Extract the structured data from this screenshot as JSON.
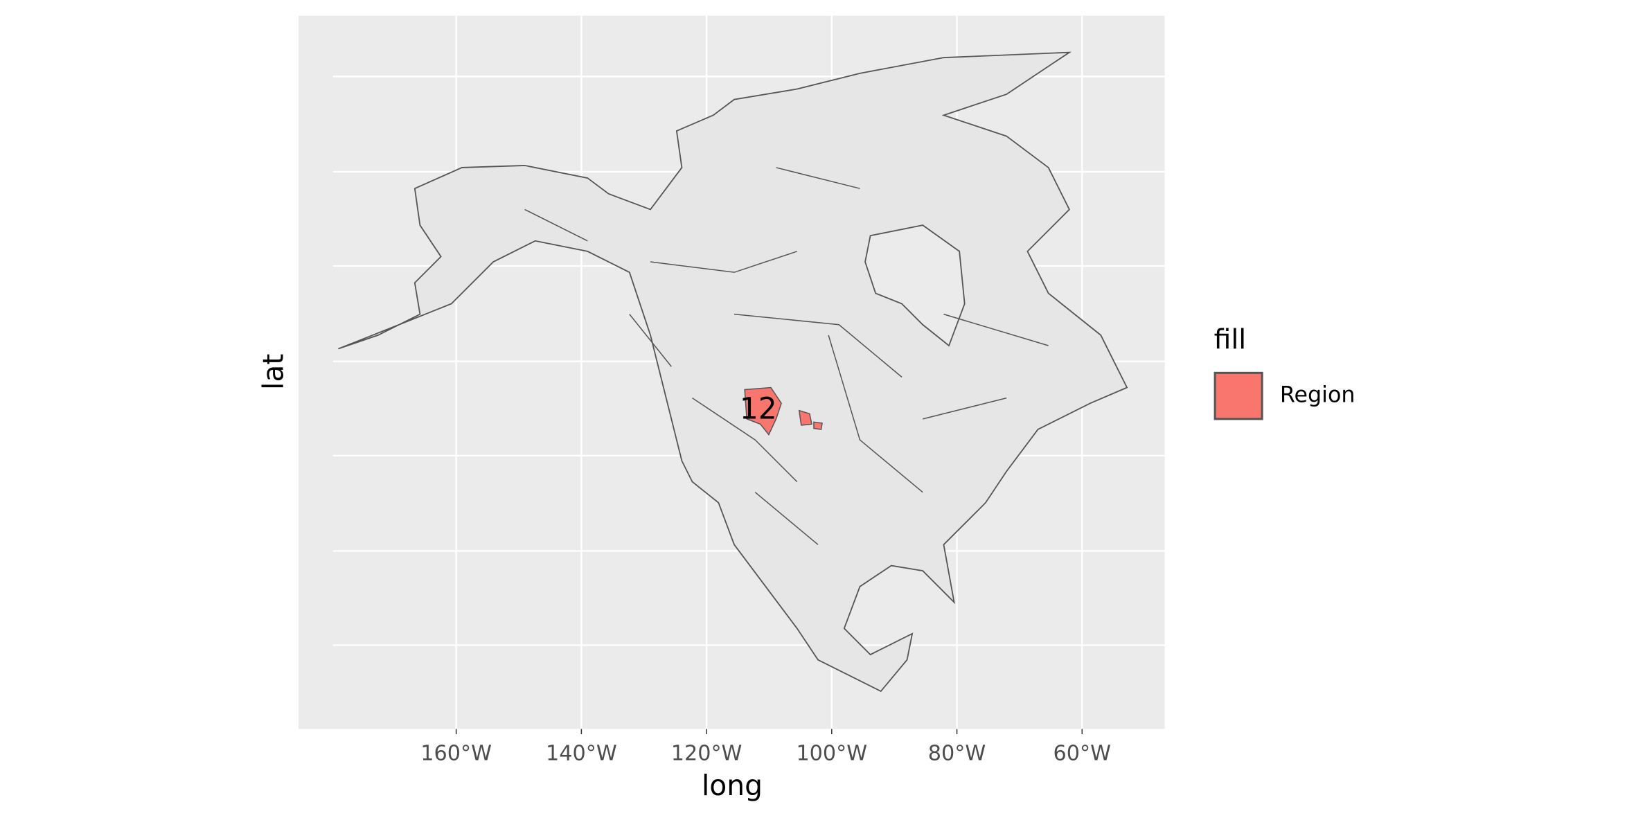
{
  "chart_data": {
    "type": "map",
    "xlabel": "long",
    "ylabel": "lat",
    "xlim": [
      -185.2,
      -46.8
    ],
    "xticks": [
      {
        "value": -160,
        "label": "160°W"
      },
      {
        "value": -140,
        "label": "140°W"
      },
      {
        "value": -120,
        "label": "120°W"
      },
      {
        "value": -100,
        "label": "100°W"
      },
      {
        "value": -80,
        "label": "80°W"
      },
      {
        "value": -60,
        "label": "60°W"
      }
    ],
    "grid": true,
    "legend_title": "fill",
    "series": [
      {
        "name": "Region",
        "color": "#f8766d"
      }
    ],
    "annotations": [
      "12"
    ]
  }
}
